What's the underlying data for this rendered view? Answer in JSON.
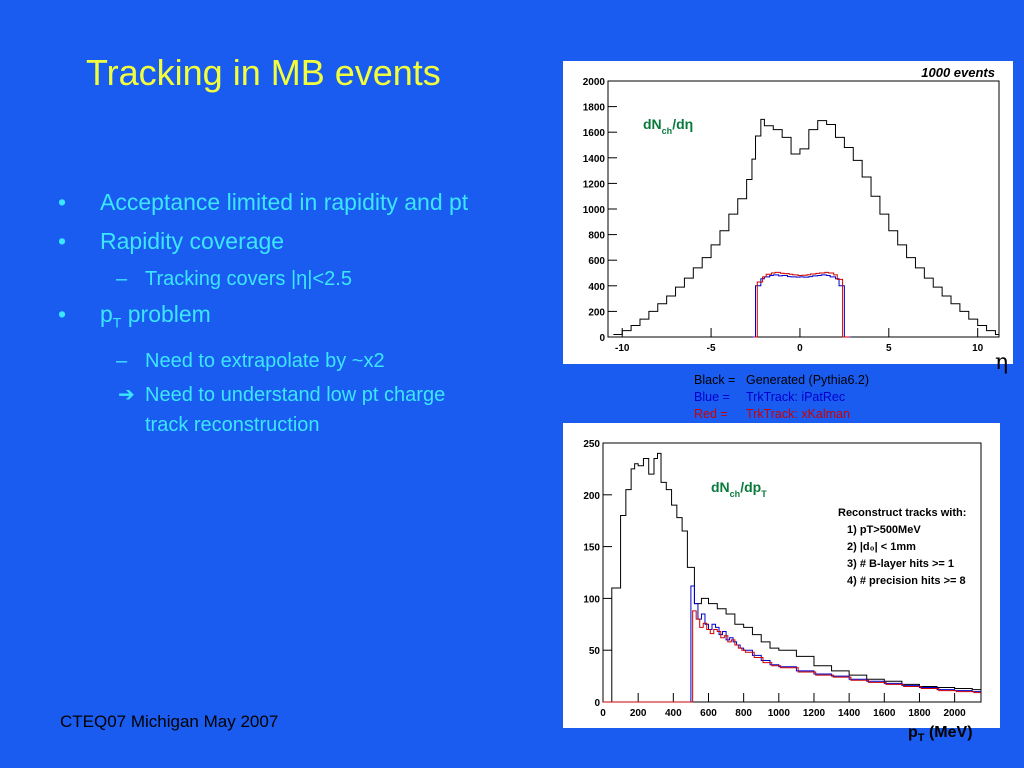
{
  "slide": {
    "title": "Tracking in MB events",
    "footer": "CTEQ07 Michigan May 2007",
    "background": "#1a5cf0",
    "title_color": "#f2ff3c",
    "text_color": "#3ce6ff"
  },
  "bullets": {
    "b1": "Acceptance limited in rapidity and pt",
    "b2": "Rapidity coverage",
    "b2_sub": "Tracking covers |η|<2.5",
    "b3_p": "p",
    "b3_sub_T": "T",
    "b3_rest": " problem",
    "b3_sub1": "Need to extrapolate by ~x2",
    "b3_sub2": "Need to understand low pt charge track reconstruction",
    "bullet_glyph": "•",
    "dash_glyph": "–",
    "arrow_glyph": "➔"
  },
  "legend": {
    "black_key": "Black =",
    "black_val": "Generated (Pythia6.2)",
    "blue_key": "Blue   =",
    "blue_val": "TrkTrack: iPatRec",
    "red_key": "Red    =",
    "red_val": "TrkTrack: xKalman",
    "black_color": "#000000",
    "blue_color": "#0000cc",
    "red_color": "#cc0000"
  },
  "chart_data": [
    {
      "type": "line",
      "step": true,
      "annotation": "1000 events",
      "label_main": "dN",
      "label_sub": "ch",
      "label_tail": "/dη",
      "xlabel": "η",
      "ylabel": "",
      "xlim": [
        -10.8,
        11.2
      ],
      "ylim": [
        0,
        2000
      ],
      "xticks": [
        -10,
        -5,
        0,
        5,
        10
      ],
      "yticks": [
        0,
        200,
        400,
        600,
        800,
        1000,
        1200,
        1400,
        1600,
        1800,
        2000
      ],
      "grid": false,
      "series": [
        {
          "name": "Black",
          "color": "#000000",
          "x": [
            -10.5,
            -10,
            -9.5,
            -9,
            -8.5,
            -8,
            -7.5,
            -7,
            -6.5,
            -6,
            -5.5,
            -5,
            -4.5,
            -4,
            -3.5,
            -3,
            -2.7,
            -2.5,
            -2.2,
            -2,
            -1.5,
            -1,
            -0.5,
            0,
            0.5,
            1,
            1.5,
            2,
            2.5,
            3,
            3.5,
            4,
            4.5,
            5,
            5.5,
            6,
            6.5,
            7,
            7.5,
            8,
            8.5,
            9,
            9.5,
            10,
            10.5,
            11
          ],
          "values": [
            20,
            50,
            90,
            140,
            200,
            260,
            320,
            390,
            460,
            540,
            620,
            720,
            830,
            960,
            1080,
            1230,
            1390,
            1570,
            1700,
            1650,
            1620,
            1560,
            1430,
            1470,
            1620,
            1690,
            1660,
            1560,
            1480,
            1380,
            1250,
            1100,
            960,
            830,
            720,
            620,
            540,
            460,
            390,
            320,
            260,
            200,
            140,
            90,
            50,
            20
          ]
        },
        {
          "name": "Blue",
          "color": "#0000cc",
          "x": [
            -2.7,
            -2.5,
            -2.2,
            -2,
            -1.7,
            -1.5,
            -1.2,
            -1,
            -0.7,
            -0.5,
            -0.2,
            0,
            0.2,
            0.5,
            0.7,
            1,
            1.2,
            1.5,
            1.7,
            2,
            2.2,
            2.5,
            2.7
          ],
          "values": [
            0,
            400,
            455,
            470,
            480,
            485,
            478,
            480,
            472,
            470,
            468,
            470,
            468,
            472,
            478,
            480,
            485,
            480,
            470,
            455,
            400,
            0,
            0
          ]
        },
        {
          "name": "Red",
          "color": "#cc0000",
          "x": [
            -2.6,
            -2.4,
            -2.1,
            -1.9,
            -1.6,
            -1.4,
            -1.1,
            -0.9,
            -0.6,
            -0.4,
            -0.1,
            0.1,
            0.4,
            0.6,
            0.9,
            1.1,
            1.4,
            1.6,
            1.9,
            2.1,
            2.4,
            2.6
          ],
          "values": [
            0,
            430,
            470,
            490,
            500,
            505,
            498,
            495,
            490,
            485,
            480,
            482,
            486,
            492,
            497,
            500,
            505,
            500,
            485,
            450,
            0,
            0
          ]
        }
      ]
    },
    {
      "type": "line",
      "step": true,
      "label_main": "dN",
      "label_sub": "ch",
      "label_tail": "/dp",
      "label_tail_sub": "T",
      "xlabel_main": "p",
      "xlabel_sub": "T",
      "xlabel_tail": " (MeV)",
      "ylabel": "",
      "xlim": [
        0,
        2150
      ],
      "ylim": [
        0,
        250
      ],
      "xticks": [
        0,
        200,
        400,
        600,
        800,
        1000,
        1200,
        1400,
        1600,
        1800,
        2000
      ],
      "yticks": [
        0,
        50,
        100,
        150,
        200,
        250
      ],
      "grid": false,
      "annotation_lines": [
        "Reconstruct tracks with:",
        "1) pT>500MeV",
        "2) |d₀| < 1mm",
        "3) # B-layer hits >= 1",
        "4) # precision hits >= 8"
      ],
      "series": [
        {
          "name": "Black",
          "color": "#000000",
          "x": [
            0,
            50,
            100,
            130,
            160,
            180,
            200,
            230,
            260,
            290,
            310,
            330,
            360,
            390,
            420,
            450,
            480,
            520,
            560,
            600,
            650,
            700,
            750,
            800,
            850,
            900,
            950,
            1000,
            1100,
            1200,
            1300,
            1400,
            1500,
            1600,
            1700,
            1800,
            1900,
            2000,
            2100
          ],
          "values": [
            0,
            110,
            180,
            205,
            225,
            230,
            228,
            235,
            220,
            235,
            240,
            212,
            205,
            190,
            178,
            165,
            130,
            95,
            100,
            95,
            90,
            85,
            75,
            72,
            65,
            58,
            52,
            50,
            44,
            35,
            30,
            26,
            22,
            20,
            17,
            15,
            14,
            13,
            12
          ]
        },
        {
          "name": "Blue",
          "color": "#0000cc",
          "x": [
            0,
            480,
            500,
            520,
            540,
            560,
            580,
            600,
            620,
            640,
            660,
            680,
            700,
            720,
            740,
            760,
            780,
            800,
            850,
            900,
            950,
            1000,
            1100,
            1200,
            1300,
            1400,
            1500,
            1600,
            1700,
            1800,
            1900,
            2000,
            2100
          ],
          "values": [
            0,
            0,
            112,
            95,
            80,
            85,
            75,
            70,
            75,
            72,
            65,
            68,
            60,
            62,
            58,
            55,
            52,
            50,
            45,
            40,
            36,
            34,
            30,
            27,
            25,
            22,
            20,
            18,
            16,
            14,
            12,
            11,
            10
          ]
        },
        {
          "name": "Red",
          "color": "#cc0000",
          "x": [
            0,
            490,
            510,
            530,
            550,
            570,
            590,
            610,
            630,
            650,
            670,
            690,
            710,
            730,
            750,
            770,
            790,
            810,
            860,
            910,
            960,
            1010,
            1110,
            1210,
            1310,
            1410,
            1510,
            1610,
            1710,
            1810,
            1910,
            2010,
            2110
          ],
          "values": [
            0,
            0,
            88,
            80,
            72,
            76,
            70,
            66,
            70,
            68,
            62,
            64,
            58,
            60,
            55,
            52,
            50,
            48,
            43,
            38,
            35,
            33,
            29,
            26,
            24,
            21,
            19,
            17,
            15,
            13,
            11,
            10,
            9
          ]
        }
      ]
    }
  ]
}
